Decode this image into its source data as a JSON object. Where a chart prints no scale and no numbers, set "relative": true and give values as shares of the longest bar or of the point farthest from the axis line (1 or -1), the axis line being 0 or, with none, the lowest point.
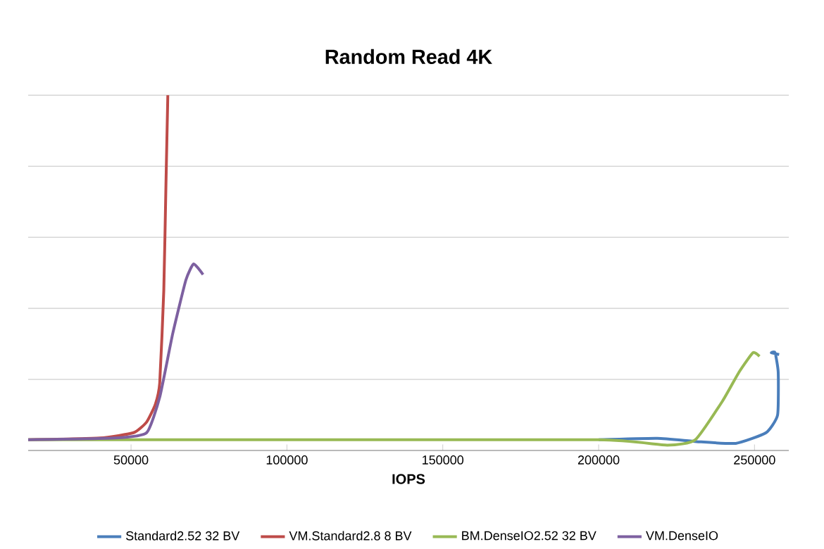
{
  "chart_data": {
    "type": "line",
    "title": "Random Read 4K",
    "xlabel": "IOPS",
    "relative": true,
    "grid": "y",
    "legend": "bottom",
    "marker": "none",
    "line_style": "solid",
    "xlim": [
      17000,
      261000
    ],
    "xticks": [
      50000,
      100000,
      150000,
      200000,
      250000
    ],
    "series": [
      {
        "name": "Standard2.52 32 BV",
        "color": "#4a7ebb",
        "x": [
          200000,
          218800,
          231400,
          244000,
          253700,
          257400,
          257600,
          256600,
          255400,
          257900
        ],
        "values": [
          0.03,
          0.034,
          0.025,
          0.02,
          0.05,
          0.1,
          0.22,
          0.275,
          0.275,
          0.27
        ]
      },
      {
        "name": "VM.Standard2.8 8 BV",
        "color": "#be4b48",
        "x": [
          17000,
          40000,
          50800,
          55000,
          57800,
          59200,
          60500,
          61200,
          61800
        ],
        "values": [
          0.03,
          0.035,
          0.05,
          0.08,
          0.13,
          0.19,
          0.45,
          0.75,
          1.0
        ]
      },
      {
        "name": "BM.DenseIO2.52 32 BV",
        "color": "#98b954",
        "x": [
          17000,
          100000,
          200000,
          222000,
          231000,
          239800,
          245000,
          249500,
          251600
        ],
        "values": [
          0.03,
          0.03,
          0.03,
          0.015,
          0.03,
          0.14,
          0.22,
          0.275,
          0.265
        ]
      },
      {
        "name": "VM.DenseIO",
        "color": "#7d60a0",
        "x": [
          17000,
          45000,
          55000,
          59200,
          63400,
          67600,
          70100,
          73100
        ],
        "values": [
          0.03,
          0.035,
          0.05,
          0.15,
          0.33,
          0.48,
          0.525,
          0.495
        ]
      }
    ]
  }
}
